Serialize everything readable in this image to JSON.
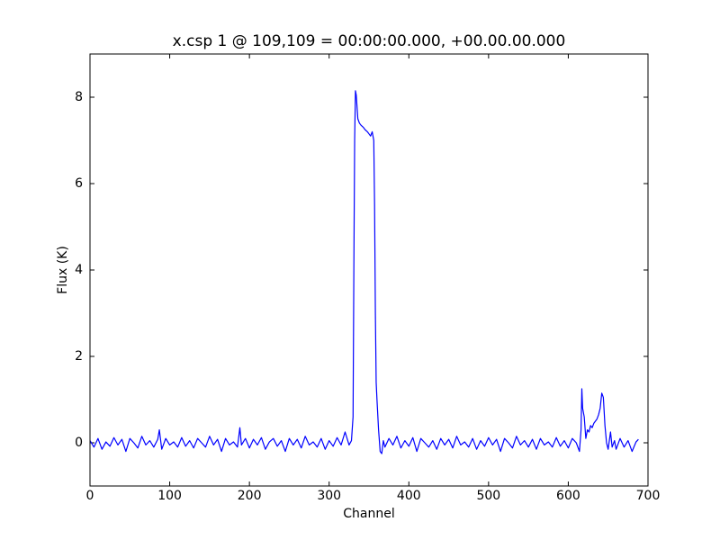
{
  "chart_data": {
    "type": "line",
    "title": "x.csp 1 @ 109,109 = 00:00:00.000, +00.00.00.000",
    "x_label": "Channel",
    "y_label": "Flux (K)",
    "x": [
      0,
      5,
      10,
      15,
      20,
      25,
      30,
      35,
      40,
      45,
      50,
      55,
      60,
      65,
      70,
      75,
      80,
      85,
      87,
      90,
      95,
      100,
      105,
      110,
      115,
      120,
      125,
      130,
      135,
      140,
      145,
      150,
      155,
      160,
      165,
      170,
      175,
      180,
      185,
      188,
      190,
      195,
      200,
      205,
      210,
      215,
      220,
      225,
      230,
      235,
      240,
      245,
      250,
      255,
      260,
      265,
      270,
      275,
      280,
      285,
      290,
      295,
      300,
      305,
      310,
      315,
      320,
      325,
      328,
      330,
      331,
      332,
      333,
      334,
      336,
      338,
      340,
      343,
      345,
      348,
      350,
      352,
      354,
      356,
      357,
      358,
      359,
      360,
      362,
      364,
      366,
      368,
      370,
      375,
      380,
      385,
      390,
      395,
      400,
      405,
      410,
      415,
      420,
      425,
      430,
      435,
      440,
      445,
      450,
      455,
      460,
      465,
      470,
      475,
      480,
      485,
      490,
      495,
      500,
      505,
      510,
      515,
      520,
      525,
      530,
      535,
      540,
      545,
      550,
      555,
      560,
      565,
      570,
      575,
      580,
      585,
      590,
      595,
      600,
      605,
      610,
      614,
      616,
      617,
      618,
      620,
      622,
      624,
      626,
      628,
      630,
      632,
      634,
      636,
      638,
      640,
      642,
      644,
      646,
      648,
      650,
      653,
      655,
      658,
      660,
      665,
      670,
      675,
      680,
      685,
      688
    ],
    "series": [
      {
        "color": "#0000ff",
        "values": [
          0.05,
          -0.1,
          0.1,
          -0.15,
          0.02,
          -0.08,
          0.12,
          -0.05,
          0.08,
          -0.2,
          0.1,
          0,
          -0.12,
          0.15,
          -0.05,
          0.05,
          -0.1,
          0.08,
          0.3,
          -0.15,
          0.1,
          -0.05,
          0.02,
          -0.1,
          0.12,
          -0.08,
          0.05,
          -0.12,
          0.1,
          0,
          -0.1,
          0.15,
          -0.05,
          0.08,
          -0.2,
          0.1,
          -0.05,
          0.02,
          -0.1,
          0.35,
          -0.05,
          0.1,
          -0.12,
          0.08,
          -0.05,
          0.12,
          -0.15,
          0.02,
          0.1,
          -0.08,
          0.05,
          -0.2,
          0.1,
          -0.05,
          0.08,
          -0.12,
          0.15,
          -0.05,
          0.02,
          -0.1,
          0.1,
          -0.15,
          0.05,
          -0.08,
          0.12,
          -0.05,
          0.25,
          -0.05,
          0.05,
          0.6,
          4.0,
          7.0,
          8.15,
          8.05,
          7.5,
          7.4,
          7.35,
          7.3,
          7.25,
          7.2,
          7.15,
          7.1,
          7.2,
          7.0,
          5.5,
          3.0,
          1.4,
          1.0,
          0.3,
          -0.2,
          -0.25,
          0.05,
          -0.1,
          0.1,
          -0.05,
          0.15,
          -0.12,
          0.05,
          -0.08,
          0.12,
          -0.2,
          0.1,
          0,
          -0.1,
          0.05,
          -0.15,
          0.1,
          -0.05,
          0.08,
          -0.12,
          0.15,
          -0.05,
          0.02,
          -0.1,
          0.1,
          -0.15,
          0.05,
          -0.08,
          0.12,
          -0.05,
          0.08,
          -0.2,
          0.1,
          0,
          -0.12,
          0.15,
          -0.05,
          0.05,
          -0.1,
          0.08,
          -0.15,
          0.1,
          -0.05,
          0.02,
          -0.1,
          0.12,
          -0.08,
          0.05,
          -0.12,
          0.1,
          0,
          -0.2,
          0.3,
          1.25,
          0.8,
          0.6,
          0.1,
          0.3,
          0.25,
          0.4,
          0.35,
          0.45,
          0.5,
          0.55,
          0.65,
          0.8,
          1.15,
          1.05,
          0.4,
          0.0,
          -0.15,
          0.25,
          -0.1,
          0.05,
          -0.15,
          0.1,
          -0.1,
          0.05,
          -0.2,
          0.02,
          0.08
        ]
      }
    ],
    "xlim": [
      0,
      700
    ],
    "xticks": [
      0,
      100,
      200,
      300,
      400,
      500,
      600,
      700
    ],
    "ylim": [
      -1,
      9
    ],
    "yticks": [
      0,
      2,
      4,
      6,
      8
    ],
    "grid": false
  }
}
